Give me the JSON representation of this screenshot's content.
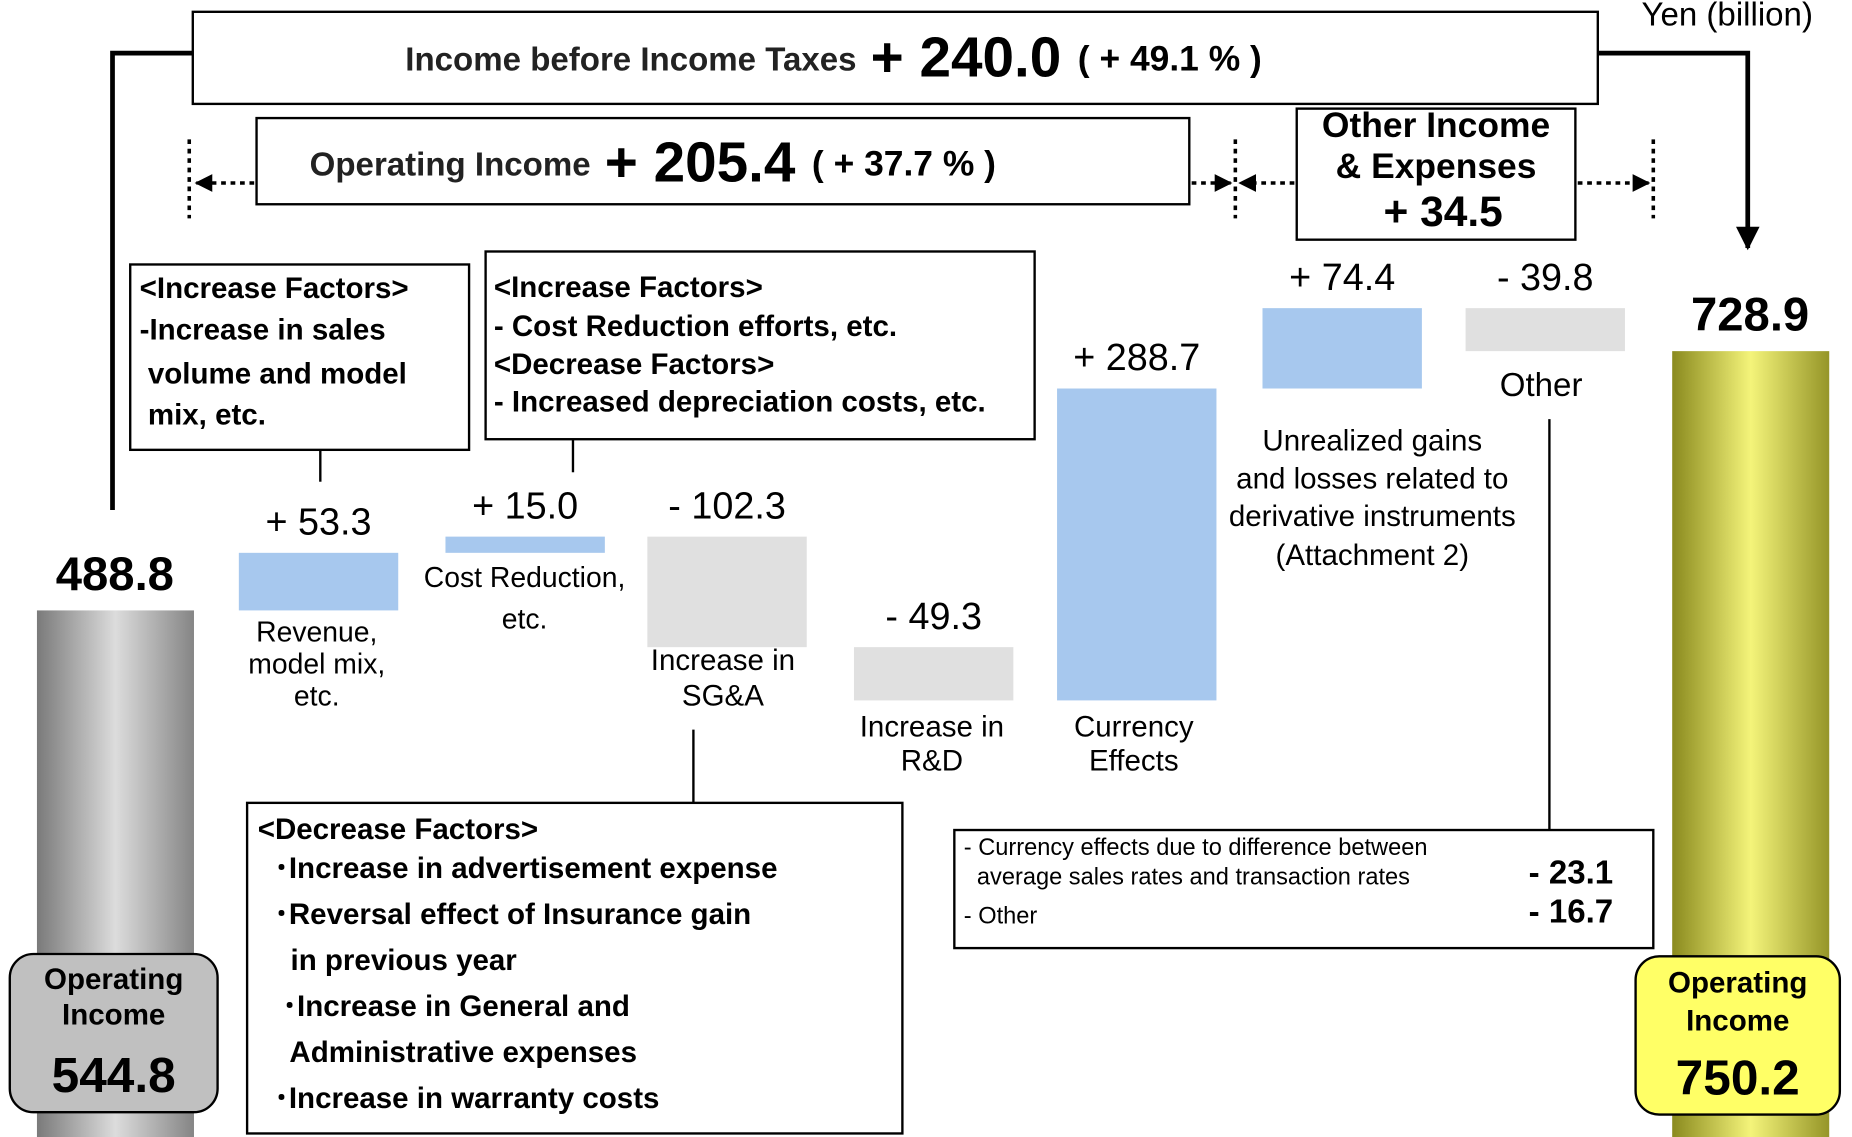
{
  "unit_label": "Yen (billion)",
  "header": {
    "income_before_taxes": {
      "label": "Income before Income Taxes",
      "change": "+ 240.0",
      "percent": "( + 49.1 % )"
    },
    "operating_income": {
      "label": "Operating Income",
      "change": "+ 205.4",
      "percent": "( + 37.7 % )"
    },
    "other_income": {
      "label": [
        "Other Income",
        "& Expenses"
      ],
      "change": "+ 34.5"
    }
  },
  "chart_data": {
    "type": "waterfall",
    "start": {
      "label": [
        "Operating",
        "Income"
      ],
      "value": 544.8,
      "income_before_taxes": 488.8,
      "color": "#c0c0c0"
    },
    "end": {
      "label": [
        "Operating",
        "Income"
      ],
      "value": 750.2,
      "income_before_taxes": 728.9,
      "color": "#ffff66"
    },
    "categories": [
      [
        "Revenue,",
        "model mix,",
        "etc."
      ],
      [
        "Cost Reduction,",
        "etc."
      ],
      [
        "Increase in",
        "SG&A"
      ],
      [
        "Increase in",
        "R&D"
      ],
      [
        "Currency",
        "Effects"
      ],
      [
        "Unrealized gains",
        "and losses related to",
        "derivative instruments",
        "(Attachment 2)"
      ],
      [
        "Other"
      ]
    ],
    "values": [
      53.3,
      15.0,
      -102.3,
      -49.3,
      288.7,
      74.4,
      -39.8
    ],
    "value_labels": [
      "+ 53.3",
      "+ 15.0",
      "- 102.3",
      "- 49.3",
      "+ 288.7",
      "+ 74.4",
      "- 39.8"
    ],
    "increase_color": "#a7c8ee",
    "decrease_color": "#e0e0e0"
  },
  "notes": {
    "revenue": [
      "<Increase Factors>",
      "-Increase in sales",
      " volume and model",
      " mix, etc."
    ],
    "cost": [
      "<Increase Factors>",
      "- Cost Reduction efforts, etc.",
      "<Decrease Factors>",
      "- Increased depreciation costs, etc."
    ],
    "sga": [
      "<Decrease Factors>",
      "  ･Increase in advertisement expense",
      "  ･Reversal effect of Insurance gain",
      "    in previous year",
      "   ･Increase in General and",
      "    Administrative expenses",
      "  ･Increase in warranty costs"
    ]
  },
  "other_breakdown": {
    "rows": [
      {
        "label": [
          "- Currency effects due to difference between",
          "  average sales rates and transaction rates"
        ],
        "value": "- 23.1"
      },
      {
        "label": [
          "- Other"
        ],
        "value": "- 16.7"
      }
    ]
  }
}
